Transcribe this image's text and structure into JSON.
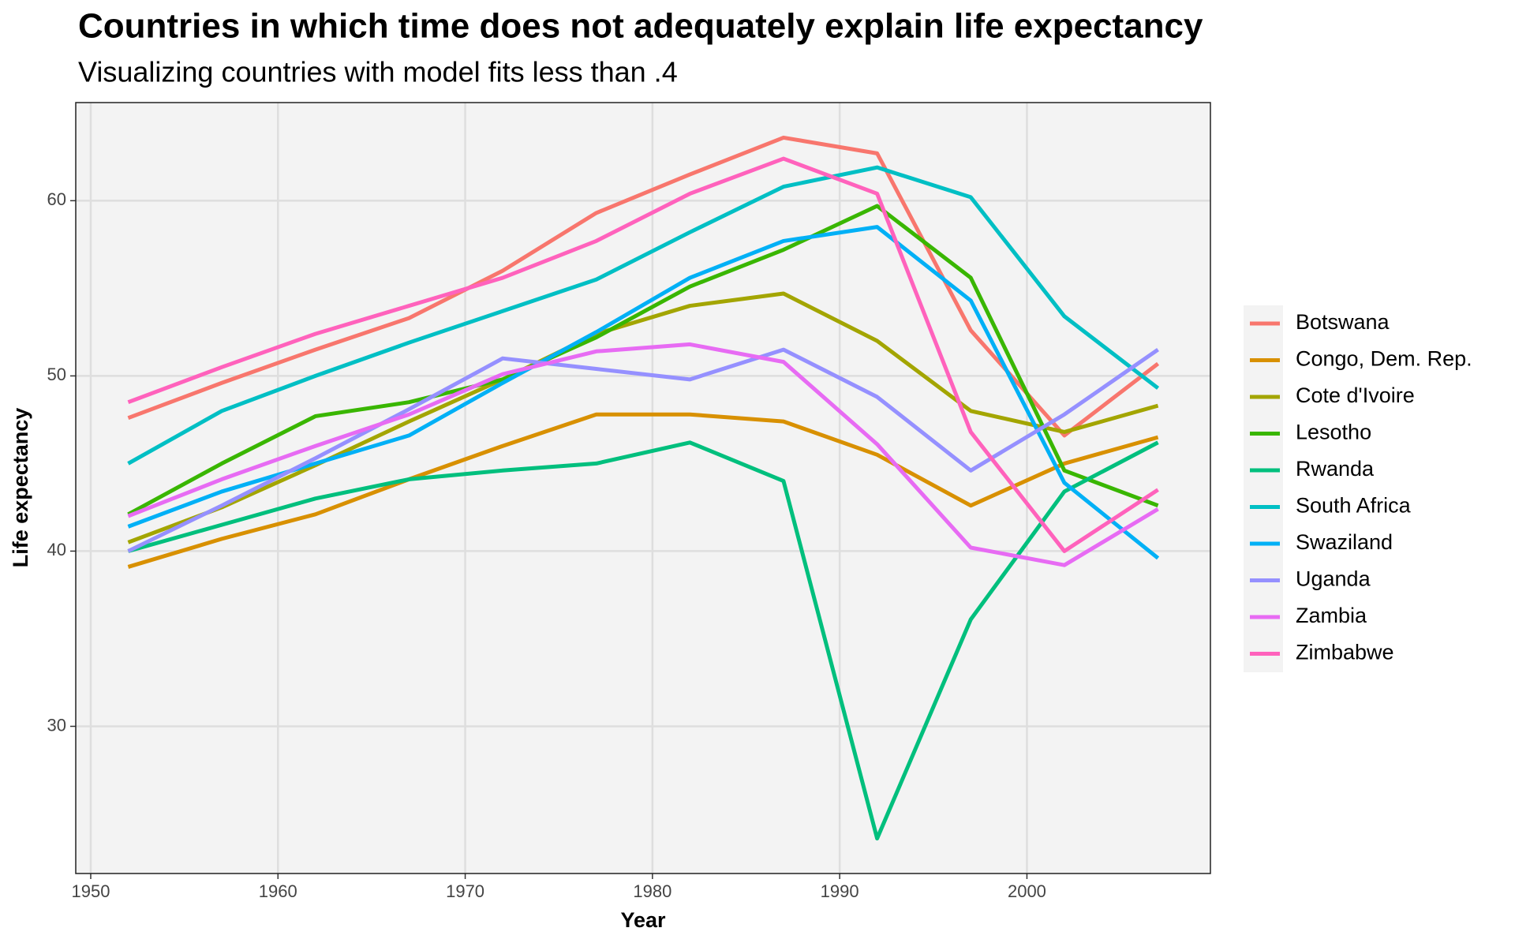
{
  "chart_data": {
    "type": "line",
    "title": "Countries in which time does not adequately explain life expectancy",
    "subtitle": "Visualizing countries with model fits less than .4",
    "x_label": "Year",
    "y_label": "Life expectancy",
    "x": [
      1952,
      1957,
      1962,
      1967,
      1972,
      1977,
      1982,
      1987,
      1992,
      1997,
      2002,
      2007
    ],
    "xlim": [
      1949.2,
      2009.8
    ],
    "xticks": [
      1950,
      1960,
      1970,
      1980,
      1990,
      2000
    ],
    "ylim": [
      21.6,
      65.6
    ],
    "yticks": [
      30,
      40,
      50,
      60
    ],
    "grid": true,
    "legend": "right",
    "series": [
      {
        "name": "Botswana",
        "color": "#F8766D",
        "values": [
          47.6,
          49.6,
          51.5,
          53.3,
          56.0,
          59.3,
          61.5,
          63.6,
          62.7,
          52.6,
          46.6,
          50.7
        ]
      },
      {
        "name": "Congo, Dem. Rep.",
        "color": "#D89000",
        "values": [
          39.1,
          40.7,
          42.1,
          44.1,
          46.0,
          47.8,
          47.8,
          47.4,
          45.5,
          42.6,
          45.0,
          46.5
        ]
      },
      {
        "name": "Cote d'Ivoire",
        "color": "#A3A500",
        "values": [
          40.5,
          42.5,
          44.9,
          47.4,
          49.8,
          52.4,
          54.0,
          54.7,
          52.0,
          48.0,
          46.8,
          48.3
        ]
      },
      {
        "name": "Lesotho",
        "color": "#39B600",
        "values": [
          42.1,
          45.0,
          47.7,
          48.5,
          49.8,
          52.2,
          55.1,
          57.2,
          59.7,
          55.6,
          44.6,
          42.6
        ]
      },
      {
        "name": "Rwanda",
        "color": "#00BF7D",
        "values": [
          40.0,
          41.5,
          43.0,
          44.1,
          44.6,
          45.0,
          46.2,
          44.0,
          23.6,
          36.1,
          43.4,
          46.2
        ]
      },
      {
        "name": "South Africa",
        "color": "#00BFC4",
        "values": [
          45.0,
          48.0,
          50.0,
          51.9,
          53.7,
          55.5,
          58.2,
          60.8,
          61.9,
          60.2,
          53.4,
          49.3
        ]
      },
      {
        "name": "Swaziland",
        "color": "#00B0F6",
        "values": [
          41.4,
          43.4,
          45.0,
          46.6,
          49.6,
          52.5,
          55.6,
          57.7,
          58.5,
          54.3,
          43.9,
          39.6
        ]
      },
      {
        "name": "Uganda",
        "color": "#9590FF",
        "values": [
          40.0,
          42.6,
          45.3,
          48.1,
          51.0,
          50.4,
          49.8,
          51.5,
          48.8,
          44.6,
          47.8,
          51.5
        ]
      },
      {
        "name": "Zambia",
        "color": "#E76BF3",
        "values": [
          42.0,
          44.1,
          46.0,
          47.8,
          50.1,
          51.4,
          51.8,
          50.8,
          46.1,
          40.2,
          39.2,
          42.4
        ]
      },
      {
        "name": "Zimbabwe",
        "color": "#FF62BC",
        "values": [
          48.5,
          50.5,
          52.4,
          54.0,
          55.6,
          57.7,
          60.4,
          62.4,
          60.4,
          46.8,
          40.0,
          43.5
        ]
      }
    ]
  }
}
